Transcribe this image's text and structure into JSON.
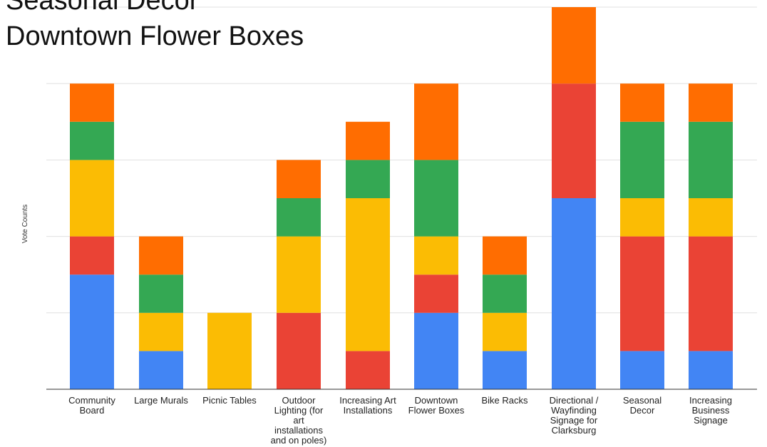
{
  "overlay_lines": [
    "Seasonal Decor",
    "Downtown Flower Boxes"
  ],
  "chart_data": {
    "type": "bar",
    "stacked": true,
    "ylabel": "Vote Counts",
    "xlabel": "",
    "ylim": [
      0,
      10
    ],
    "grid": true,
    "legend": "none",
    "categories": [
      "Community Board",
      "Large Murals",
      "Picnic Tables",
      "Outdoor Lighting (for art installations and on poles)",
      "Increasing Art Installations",
      "Downtown Flower Boxes",
      "Bike Racks",
      "Directional / Wayfinding Signage for Clarksburg",
      "Seasonal Decor",
      "Increasing Business Signage"
    ],
    "category_label_lines": [
      [
        "Community",
        "Board"
      ],
      [
        "Large Murals"
      ],
      [
        "Picnic Tables"
      ],
      [
        "Outdoor",
        "Lighting (for",
        "art",
        "installations",
        "and on poles)"
      ],
      [
        "Increasing Art",
        "Installations"
      ],
      [
        "Downtown",
        "Flower Boxes"
      ],
      [
        "Bike Racks"
      ],
      [
        "Directional /",
        "Wayfinding",
        "Signage for",
        "Clarksburg"
      ],
      [
        "Seasonal",
        "Decor"
      ],
      [
        "Increasing",
        "Business",
        "Signage"
      ]
    ],
    "series": [
      {
        "color": "#4285F4",
        "values": [
          3,
          1,
          0,
          0,
          0,
          2,
          1,
          5,
          1,
          1
        ]
      },
      {
        "color": "#EA4335",
        "values": [
          1,
          0,
          0,
          2,
          1,
          1,
          0,
          3,
          3,
          3
        ]
      },
      {
        "color": "#FBBC04",
        "values": [
          2,
          1,
          2,
          2,
          4,
          1,
          1,
          0,
          1,
          1
        ]
      },
      {
        "color": "#34A853",
        "values": [
          1,
          1,
          0,
          1,
          1,
          2,
          1,
          0,
          2,
          2
        ]
      },
      {
        "color": "#FF6D01",
        "values": [
          1,
          1,
          0,
          1,
          1,
          2,
          1,
          2,
          1,
          1
        ]
      }
    ]
  }
}
